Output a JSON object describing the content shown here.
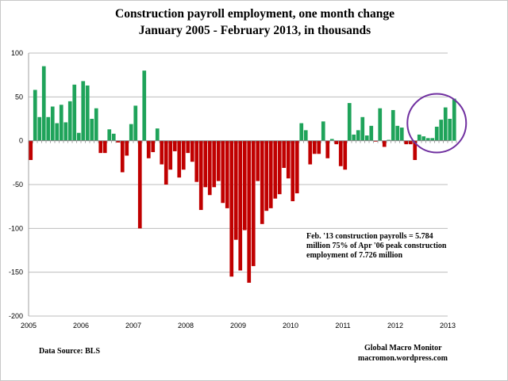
{
  "chart_data": {
    "type": "bar",
    "title": "Construction payroll employment, one month change",
    "subtitle": "January 2005 - February 2013,  in thousands",
    "xlabel": "",
    "ylabel": "",
    "ylim": [
      -200,
      100
    ],
    "yticks": [
      100,
      50,
      0,
      -50,
      -100,
      -150,
      -200
    ],
    "xtick_labels": [
      "2005",
      "2006",
      "2007",
      "2008",
      "2009",
      "2010",
      "2011",
      "2012",
      "2013"
    ],
    "grid": true,
    "start": "2005-01",
    "end": "2013-02",
    "positive_color": "#1fa35a",
    "negative_color": "#c00000",
    "highlight_color": "#7030a0",
    "values": [
      -22,
      58,
      27,
      85,
      27,
      39,
      20,
      41,
      21,
      45,
      64,
      9,
      68,
      63,
      25,
      37,
      -14,
      -14,
      13,
      8,
      -2,
      -36,
      -17,
      19,
      40,
      -100,
      80,
      -20,
      -13,
      14,
      -27,
      -50,
      -33,
      -12,
      -42,
      -33,
      -14,
      -24,
      -47,
      -79,
      -53,
      -62,
      -53,
      -46,
      -71,
      -77,
      -155,
      -113,
      -148,
      -102,
      -162,
      -143,
      -46,
      -95,
      -80,
      -77,
      -66,
      -61,
      -31,
      -43,
      -69,
      -60,
      20,
      12,
      -27,
      -15,
      -15,
      22,
      -20,
      2,
      -4,
      -29,
      -33,
      43,
      7,
      12,
      27,
      6,
      17,
      -1,
      37,
      -7,
      1,
      35,
      17,
      15,
      -4,
      -4,
      -22,
      7,
      5,
      3,
      3,
      16,
      24,
      38,
      25,
      48
    ],
    "annotation": [
      "Feb. '13  construction payrolls = 5.784",
      "million  75% of Apr '06 peak  construction",
      "employment of  7.726 million"
    ],
    "highlight": "Last 9 months (Jun 2012 - Feb 2013) circled"
  },
  "footer": {
    "source": "Data Source:  BLS",
    "brand": "Global Macro Monitor",
    "site": "macromon.wordpress.com"
  }
}
